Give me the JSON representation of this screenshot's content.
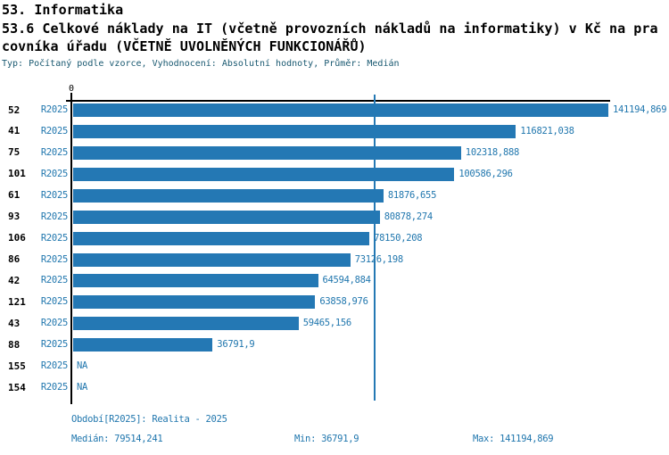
{
  "header": {
    "line1": "53. Informatika",
    "line2": "53.6 Celkové náklady na IT (včetně provozních nákladů na informatiky) v Kč na pra",
    "line3": "covníka úřadu (VČETNĚ UVOLNĚNÝCH FUNKCIONÁŘŮ)",
    "meta": "Typ: Počítaný podle vzorce, Vyhodnocení: Absolutní hodnoty, Průměr: Medián"
  },
  "chart_data": {
    "type": "bar",
    "orientation": "horizontal",
    "categories": [
      "52",
      "41",
      "75",
      "101",
      "61",
      "93",
      "106",
      "86",
      "42",
      "121",
      "43",
      "88",
      "155",
      "154"
    ],
    "series": [
      {
        "name": "R2025",
        "values": [
          141194.869,
          116821.038,
          102318.888,
          100586.296,
          81876.655,
          80878.274,
          78150.208,
          73126.198,
          64594.884,
          63858.976,
          59465.156,
          36791.9,
          null,
          null
        ],
        "value_labels": [
          "141194,869",
          "116821,038",
          "102318,888",
          "100586,296",
          "81876,655",
          "80878,274",
          "78150,208",
          "73126,198",
          "64594,884",
          "63858,976",
          "59465,156",
          "36791,9",
          "NA",
          "NA"
        ]
      }
    ],
    "period_label": "R2025",
    "x_axis": {
      "zero_label": "0",
      "min": 0,
      "max": 141194.869
    },
    "median_value": 79514.241,
    "grid": false,
    "legend": "none",
    "colors": {
      "bar": "#2478b4",
      "median_line": "#2478b4",
      "axis": "#000000",
      "blue_text": "#2177ae"
    }
  },
  "footer": {
    "period": "Období[R2025]: Realita - 2025",
    "median": "Medián: 79514,241",
    "min": "Min: 36791,9",
    "max": "Max: 141194,869"
  }
}
